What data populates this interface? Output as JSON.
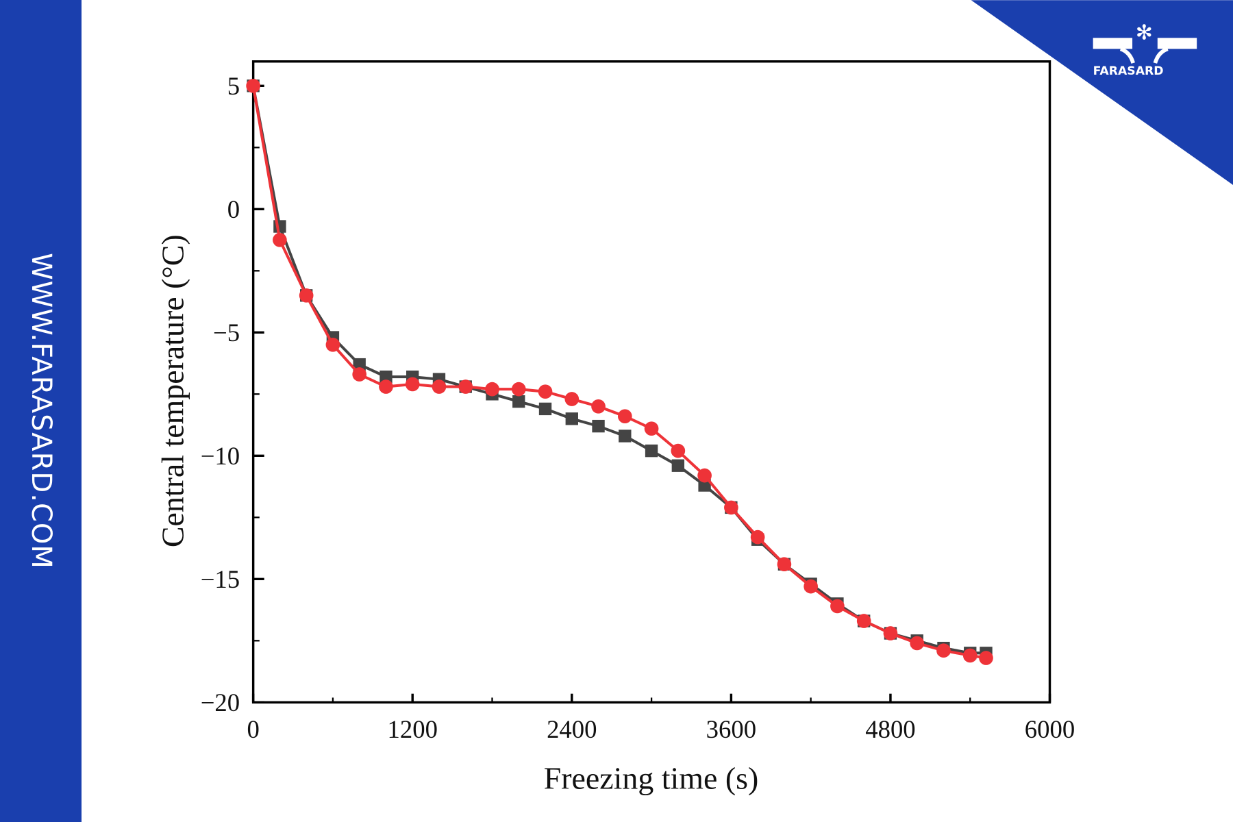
{
  "watermark": {
    "site": "WWW.FARASARD.COM",
    "logo_text": "FARASARD",
    "brand_color": "#1a3fae"
  },
  "chart_data": {
    "type": "line",
    "title": "",
    "xlabel": "Freezing time (s)",
    "ylabel": "Central temperature (°C)",
    "xlim": [
      0,
      6000
    ],
    "ylim": [
      -20,
      6
    ],
    "xticks": [
      "0",
      "1200",
      "2400",
      "3600",
      "4800",
      "6000"
    ],
    "yticks": [
      "5",
      "0",
      "−5",
      "−10",
      "−15",
      "−20"
    ],
    "grid": false,
    "x": [
      0,
      200,
      400,
      600,
      800,
      1000,
      1200,
      1400,
      1600,
      1800,
      2000,
      2200,
      2400,
      2600,
      2800,
      3000,
      3200,
      3400,
      3600,
      3800,
      4000,
      4200,
      4400,
      4600,
      4800,
      5000,
      5200,
      5400,
      5520
    ],
    "series": [
      {
        "marker": "square",
        "color": "#444444",
        "values": [
          5,
          -0.7,
          -3.5,
          -5.2,
          -6.3,
          -6.8,
          -6.8,
          -6.9,
          -7.2,
          -7.5,
          -7.8,
          -8.1,
          -8.5,
          -8.8,
          -9.2,
          -9.8,
          -10.4,
          -11.2,
          -12.1,
          -13.4,
          -14.4,
          -15.2,
          -16.0,
          -16.7,
          -17.2,
          -17.5,
          -17.8,
          -18.0,
          -18.0
        ]
      },
      {
        "marker": "circle",
        "color": "#ee3338",
        "values": [
          5,
          -1.25,
          -3.5,
          -5.5,
          -6.7,
          -7.2,
          -7.1,
          -7.2,
          -7.2,
          -7.3,
          -7.3,
          -7.4,
          -7.7,
          -8.0,
          -8.4,
          -8.9,
          -9.8,
          -10.8,
          -12.1,
          -13.3,
          -14.4,
          -15.3,
          -16.1,
          -16.7,
          -17.2,
          -17.6,
          -17.9,
          -18.1,
          -18.2
        ]
      }
    ]
  }
}
